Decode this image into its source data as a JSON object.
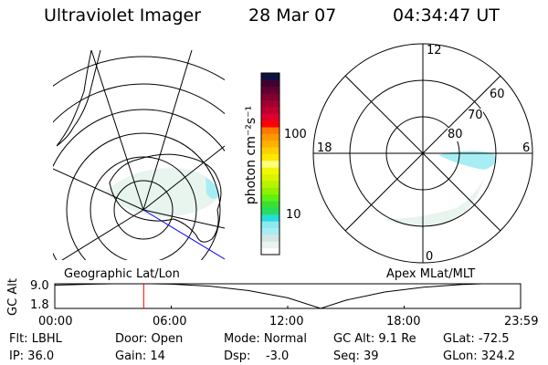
{
  "header": {
    "instrument": "Ultraviolet Imager",
    "date": "28 Mar 07",
    "time": "04:34:47 UT"
  },
  "colorbar": {
    "label": "photon cm⁻²s⁻¹",
    "ticks": [
      "100",
      "10"
    ],
    "colors": [
      "#ffffff",
      "#e8f4ee",
      "#d4e6e4",
      "#a6eef4",
      "#8ee8f2",
      "#28dcd8",
      "#28dc60",
      "#38e038",
      "#60f010",
      "#90f000",
      "#b8f400",
      "#d8f400",
      "#f0f800",
      "#ffff80",
      "#ffe800",
      "#ffd000",
      "#ffb000",
      "#ff9800",
      "#ff7800",
      "#ff0000",
      "#e00030",
      "#c00030",
      "#a00030",
      "#800030",
      "#600030",
      "#400030",
      "#101040"
    ]
  },
  "left_map": {
    "label": "Geographic Lat/Lon"
  },
  "right_map": {
    "label": "Apex MLat/MLT",
    "mlt_labels": {
      "top": "12",
      "left": "18",
      "right": "6",
      "bottom": "0"
    },
    "lat_labels": [
      "60",
      "70",
      "80"
    ]
  },
  "chart_data": {
    "type": "line",
    "ylabel": "GC Alt",
    "yticks": [
      "9.0",
      "1.8"
    ],
    "ylim": [
      1.8,
      9.0
    ],
    "xticks": [
      "00:00",
      "06:00",
      "12:00",
      "18:00",
      "23:59"
    ],
    "x_hours": [
      0,
      2,
      3,
      4,
      5,
      6,
      8,
      10,
      12,
      13.7,
      15,
      17,
      19,
      21,
      22,
      23.98
    ],
    "y": [
      8.6,
      8.9,
      9.0,
      9.0,
      9.0,
      8.9,
      8.3,
      7.0,
      4.9,
      1.8,
      4.2,
      6.6,
      8.0,
      8.8,
      9.0,
      9.0
    ],
    "current_time_hours": 4.58,
    "marker_color": "#ff0000"
  },
  "status": {
    "flt": "Flt: LBHL",
    "ip": "IP: 36.0",
    "door": "Door: Open",
    "gain": "Gain: 14",
    "mode": "Mode: Normal",
    "dsp": "Dsp:    -3.0",
    "gcalt": "GC Alt: 9.1 Re",
    "seq": "Seq: 39",
    "glat": "GLat: -72.5",
    "glon": "GLon: 324.2"
  }
}
